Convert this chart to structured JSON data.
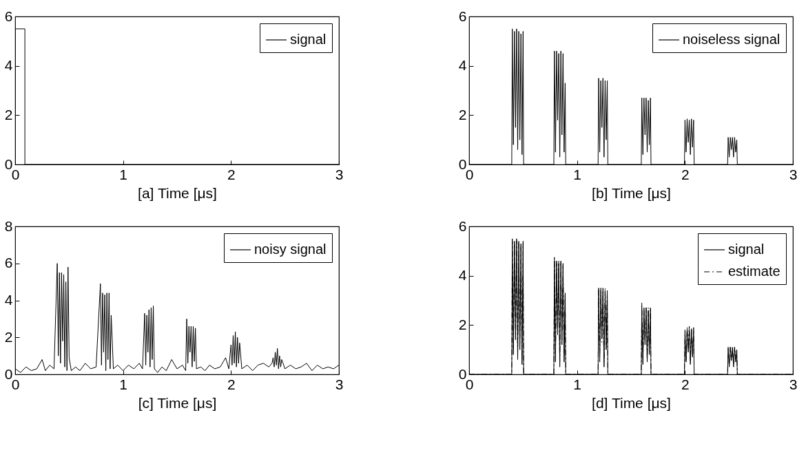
{
  "chart_data": [
    {
      "type": "line",
      "xlabel": "[a]  Time [μs]",
      "xlim": [
        0,
        3
      ],
      "xticks": [
        0,
        1,
        2,
        3
      ],
      "ylim": [
        0,
        6
      ],
      "yticks": [
        0,
        2,
        4,
        6
      ],
      "legend": "top right",
      "series": [
        {
          "name": "signal",
          "color": "#000000",
          "line_style": "solid",
          "x": [
            0,
            0,
            0.09,
            0.09,
            3
          ],
          "values": [
            0,
            5.5,
            5.5,
            0,
            0
          ]
        }
      ]
    },
    {
      "type": "line",
      "xlabel": "[b]  Time [μs]",
      "xlim": [
        0,
        3
      ],
      "xticks": [
        0,
        1,
        2,
        3
      ],
      "ylim": [
        0,
        6
      ],
      "yticks": [
        0,
        2,
        4,
        6
      ],
      "legend": "top right",
      "series": [
        {
          "name": "noiseless signal",
          "color": "#000000",
          "line_style": "solid",
          "x": [
            0,
            0.395,
            0.4,
            0.41,
            0.42,
            0.43,
            0.44,
            0.45,
            0.46,
            0.47,
            0.48,
            0.49,
            0.5,
            0.505,
            0.785,
            0.79,
            0.8,
            0.81,
            0.82,
            0.83,
            0.84,
            0.85,
            0.86,
            0.87,
            0.88,
            0.89,
            0.895,
            1.195,
            1.2,
            1.21,
            1.22,
            1.23,
            1.24,
            1.25,
            1.26,
            1.27,
            1.28,
            1.285,
            1.595,
            1.6,
            1.61,
            1.62,
            1.63,
            1.64,
            1.65,
            1.66,
            1.67,
            1.68,
            1.685,
            1.995,
            2,
            2.01,
            2.02,
            2.03,
            2.04,
            2.05,
            2.06,
            2.07,
            2.08,
            2.085,
            2.395,
            2.4,
            2.41,
            2.42,
            2.43,
            2.44,
            2.45,
            2.46,
            2.47,
            2.48,
            2.485,
            3
          ],
          "values": [
            0,
            0,
            5.5,
            0.8,
            5.4,
            1.5,
            5.5,
            0.6,
            5.4,
            1,
            5.3,
            0.4,
            5.4,
            0,
            0,
            4.6,
            0.5,
            4.6,
            1.8,
            4.5,
            0.3,
            4.6,
            1.2,
            4.5,
            0.5,
            3.3,
            0,
            0,
            3.5,
            0.5,
            3.4,
            1.5,
            3.5,
            0.3,
            3.4,
            1,
            3.4,
            0,
            0,
            2.7,
            0.4,
            2.7,
            1.2,
            2.7,
            0.5,
            2.6,
            0.8,
            2.7,
            0,
            0,
            1.8,
            0.5,
            1.85,
            0.9,
            1.8,
            0.4,
            1.85,
            0.7,
            1.8,
            0,
            0,
            1.1,
            0.3,
            1.1,
            0.6,
            1.1,
            0.3,
            1.1,
            0.5,
            1,
            0,
            0
          ]
        }
      ]
    },
    {
      "type": "line",
      "xlabel": "[c]  Time [μs]",
      "xlim": [
        0,
        3
      ],
      "xticks": [
        0,
        1,
        2,
        3
      ],
      "ylim": [
        0,
        8
      ],
      "yticks": [
        0,
        2,
        4,
        6,
        8
      ],
      "legend": "top right",
      "series": [
        {
          "name": "noisy signal",
          "color": "#000000",
          "line_style": "solid",
          "x": [
            0,
            0.05,
            0.1,
            0.15,
            0.2,
            0.25,
            0.28,
            0.32,
            0.36,
            0.39,
            0.4,
            0.41,
            0.42,
            0.43,
            0.44,
            0.45,
            0.46,
            0.47,
            0.48,
            0.49,
            0.5,
            0.52,
            0.56,
            0.6,
            0.65,
            0.7,
            0.75,
            0.79,
            0.8,
            0.81,
            0.82,
            0.83,
            0.84,
            0.85,
            0.86,
            0.87,
            0.88,
            0.89,
            0.91,
            0.95,
            1,
            1.05,
            1.1,
            1.15,
            1.18,
            1.2,
            1.21,
            1.22,
            1.23,
            1.24,
            1.25,
            1.26,
            1.27,
            1.28,
            1.29,
            1.32,
            1.36,
            1.4,
            1.45,
            1.5,
            1.55,
            1.58,
            1.59,
            1.6,
            1.61,
            1.62,
            1.63,
            1.64,
            1.65,
            1.66,
            1.67,
            1.68,
            1.72,
            1.76,
            1.8,
            1.85,
            1.9,
            1.95,
            1.98,
            2,
            2.01,
            2.02,
            2.03,
            2.04,
            2.05,
            2.06,
            2.07,
            2.08,
            2.1,
            2.15,
            2.2,
            2.25,
            2.3,
            2.35,
            2.38,
            2.39,
            2.4,
            2.41,
            2.42,
            2.43,
            2.44,
            2.45,
            2.46,
            2.47,
            2.5,
            2.55,
            2.6,
            2.65,
            2.7,
            2.75,
            2.8,
            2.85,
            2.9,
            2.95,
            3
          ],
          "values": [
            0.3,
            0.1,
            0.4,
            0.2,
            0.3,
            0.8,
            0.2,
            0.5,
            0.3,
            6,
            1,
            5.5,
            0.6,
            5.5,
            1.8,
            5.4,
            0.4,
            5,
            0.2,
            5.8,
            0.9,
            0.2,
            0.4,
            0.2,
            0.6,
            0.3,
            0.4,
            4.9,
            0.5,
            4.4,
            1.2,
            4.3,
            0.2,
            4.4,
            0.8,
            4.4,
            0.3,
            3.2,
            0.3,
            0.5,
            0.2,
            0.5,
            0.3,
            0.6,
            0.3,
            3.3,
            0.5,
            3.2,
            1.2,
            3.5,
            0.4,
            3.6,
            0.8,
            3.7,
            0.3,
            0.1,
            0.4,
            0.2,
            0.8,
            0.3,
            0.5,
            0.2,
            3,
            0.6,
            2.6,
            1.2,
            2.6,
            0.4,
            2.6,
            0.7,
            2.5,
            0.3,
            0.4,
            0.2,
            0.5,
            0.3,
            0.4,
            0.9,
            0.3,
            1.6,
            0.5,
            2.1,
            0.6,
            2.3,
            0.4,
            2,
            0.6,
            1.7,
            0.3,
            0.5,
            0.2,
            0.5,
            0.6,
            0.4,
            0.6,
            0.9,
            0.4,
            1.2,
            0.5,
            1.4,
            0.3,
            1,
            0.4,
            0.8,
            0.3,
            0.5,
            0.3,
            0.4,
            0.6,
            0.2,
            0.5,
            0.3,
            0.4,
            0.3,
            0.5
          ]
        }
      ]
    },
    {
      "type": "line",
      "xlabel": "[d]  Time [μs]",
      "xlim": [
        0,
        3
      ],
      "xticks": [
        0,
        1,
        2,
        3
      ],
      "ylim": [
        0,
        6
      ],
      "yticks": [
        0,
        2,
        4,
        6
      ],
      "legend": "top right",
      "series": [
        {
          "name": "signal",
          "color": "#000000",
          "line_style": "solid",
          "x": [
            0,
            0.395,
            0.4,
            0.41,
            0.42,
            0.43,
            0.44,
            0.45,
            0.46,
            0.47,
            0.48,
            0.49,
            0.5,
            0.505,
            0.785,
            0.79,
            0.8,
            0.81,
            0.82,
            0.83,
            0.84,
            0.85,
            0.86,
            0.87,
            0.88,
            0.89,
            0.895,
            1.195,
            1.2,
            1.21,
            1.22,
            1.23,
            1.24,
            1.25,
            1.26,
            1.27,
            1.28,
            1.285,
            1.595,
            1.6,
            1.61,
            1.62,
            1.63,
            1.64,
            1.65,
            1.66,
            1.67,
            1.68,
            1.685,
            1.995,
            2,
            2.01,
            2.02,
            2.03,
            2.04,
            2.05,
            2.06,
            2.07,
            2.08,
            2.085,
            2.395,
            2.4,
            2.41,
            2.42,
            2.43,
            2.44,
            2.45,
            2.46,
            2.47,
            2.48,
            2.485,
            3
          ],
          "values": [
            0,
            0,
            5.5,
            0.8,
            5.4,
            1.5,
            5.5,
            0.6,
            5.4,
            1,
            5.3,
            0.4,
            5.4,
            0,
            0,
            4.6,
            0.5,
            4.6,
            1.8,
            4.5,
            0.3,
            4.6,
            1.2,
            4.5,
            0.5,
            3.3,
            0,
            0,
            3.5,
            0.5,
            3.4,
            1.5,
            3.5,
            0.3,
            3.4,
            1,
            3.4,
            0,
            0,
            2.7,
            0.4,
            2.7,
            1.2,
            2.7,
            0.5,
            2.6,
            0.8,
            2.7,
            0,
            0,
            1.8,
            0.5,
            1.85,
            0.9,
            1.8,
            0.4,
            1.85,
            0.7,
            1.8,
            0,
            0,
            1.1,
            0.3,
            1.1,
            0.6,
            1.1,
            0.3,
            1.1,
            0.5,
            1,
            0,
            0
          ]
        },
        {
          "name": "estimate",
          "color": "#000000",
          "line_style": "dashed",
          "x": [
            0,
            0.395,
            0.4,
            0.41,
            0.42,
            0.43,
            0.44,
            0.45,
            0.46,
            0.47,
            0.48,
            0.49,
            0.5,
            0.505,
            0.785,
            0.79,
            0.8,
            0.81,
            0.82,
            0.83,
            0.84,
            0.85,
            0.86,
            0.87,
            0.88,
            0.89,
            0.895,
            1.195,
            1.2,
            1.21,
            1.22,
            1.23,
            1.24,
            1.25,
            1.26,
            1.27,
            1.28,
            1.285,
            1.595,
            1.6,
            1.61,
            1.62,
            1.63,
            1.64,
            1.65,
            1.66,
            1.67,
            1.68,
            1.685,
            1.995,
            2,
            2.01,
            2.02,
            2.03,
            2.04,
            2.05,
            2.06,
            2.07,
            2.08,
            2.085,
            2.395,
            2.4,
            2.41,
            2.42,
            2.43,
            2.44,
            2.45,
            2.46,
            2.47,
            2.48,
            2.485,
            3
          ],
          "values": [
            0,
            0,
            5.4,
            1,
            5.3,
            1.4,
            5.4,
            0.8,
            5.3,
            1.2,
            5.2,
            0.6,
            5.3,
            0,
            0,
            4.8,
            0.7,
            4.5,
            1.6,
            4.6,
            0.5,
            4.5,
            1.4,
            4.4,
            0.7,
            3.2,
            0,
            0,
            3.4,
            0.7,
            3.5,
            1.3,
            3.4,
            0.5,
            3.5,
            1.2,
            3.3,
            0,
            0,
            2.9,
            0.6,
            2.6,
            1.3,
            2.7,
            0.6,
            2.7,
            0.9,
            2.6,
            0,
            0,
            1.7,
            0.6,
            1.9,
            1,
            2,
            0.5,
            1.8,
            0.8,
            1.9,
            0,
            0,
            1,
            0.4,
            1.1,
            0.5,
            1.05,
            0.4,
            1.1,
            0.6,
            1,
            0,
            0
          ]
        }
      ]
    }
  ]
}
